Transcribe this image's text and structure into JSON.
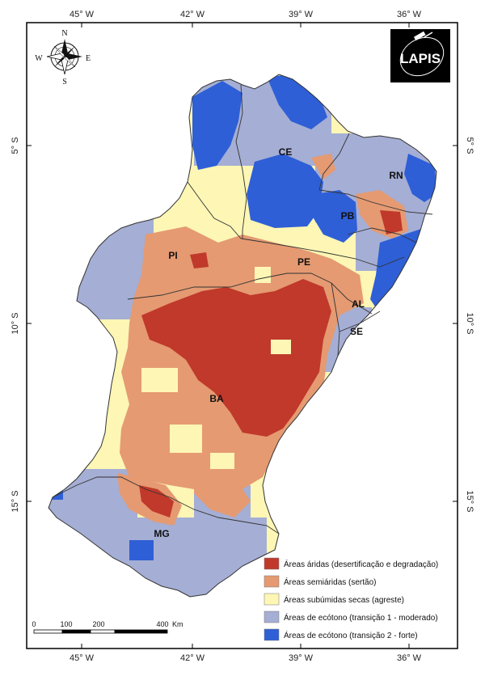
{
  "map": {
    "top_ticks": [
      "45° W",
      "42° W",
      "39° W",
      "36° W"
    ],
    "bottom_ticks": [
      "45° W",
      "42° W",
      "39° W",
      "36° W"
    ],
    "left_ticks": [
      "5° S",
      "10° S",
      "15° S"
    ],
    "right_ticks": [
      "5° S",
      "10° S",
      "15° S"
    ],
    "states": {
      "ce": "CE",
      "rn": "RN",
      "pb": "PB",
      "pi": "PI",
      "pe": "PE",
      "al": "AL",
      "se": "SE",
      "ba": "BA",
      "mg": "MG"
    }
  },
  "compass": {
    "n": "N",
    "s": "S",
    "e": "E",
    "w": "W"
  },
  "logo": {
    "text": "LAPIS"
  },
  "scale": {
    "ticks": [
      "0",
      "100",
      "200",
      "400"
    ],
    "unit": "Km"
  },
  "legend": {
    "items": [
      {
        "label": "Áreas áridas (desertificação e degradação)",
        "color": "#c0392b"
      },
      {
        "label": "Áreas semiáridas (sertão)",
        "color": "#e59a72"
      },
      {
        "label": "Áreas subúmidas secas (agreste)",
        "color": "#fdf6b5"
      },
      {
        "label": "Áreas de ecótono (transição 1 - moderado)",
        "color": "#a5aed4"
      },
      {
        "label": "Áreas de ecótono (transição 2 - forte)",
        "color": "#2e5fd6"
      }
    ]
  }
}
